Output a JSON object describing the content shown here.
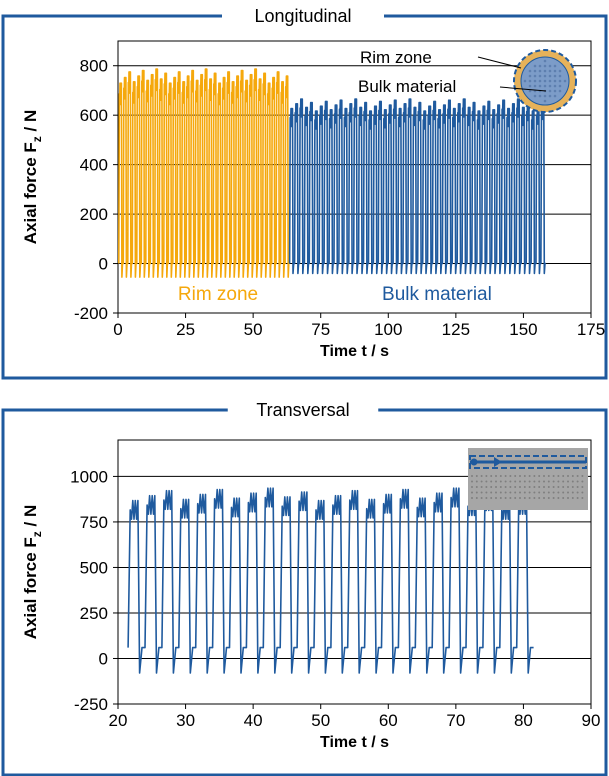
{
  "colors": {
    "frame": "#1F5A9E",
    "rim": "#F5A80C",
    "bulk": "#1F5A9E",
    "grid": "#000000",
    "inset_metal": "#A6A6A6",
    "inset_dots": "#7F7F7F",
    "inset_circle_core": "#7C9CC8",
    "inset_circle_rim": "#E6B25A"
  },
  "chart_data": [
    {
      "type": "line",
      "panel_title": "Longitudinal",
      "xlabel": "Time t / s",
      "ylabel": "Axial force F",
      "ylabel_sub": "z",
      "ylabel_unit": " / N",
      "xlim": [
        0,
        175
      ],
      "ylim": [
        -200,
        900
      ],
      "xticks": [
        "0",
        "25",
        "50",
        "75",
        "100",
        "125",
        "150",
        "175"
      ],
      "yticks": [
        "-200",
        "0",
        "200",
        "400",
        "600",
        "800"
      ],
      "grid": "horizontal",
      "series": [
        {
          "name": "Rim zone",
          "color_key": "rim",
          "t_start": 0.3,
          "t_end": 63.5,
          "cycle_count": 38,
          "baseline": 0,
          "peak": 715,
          "trough": -55
        },
        {
          "name": "Bulk material",
          "color_key": "bulk",
          "t_start": 63.5,
          "t_end": 158.3,
          "cycle_count": 52,
          "baseline": 0,
          "peak": 605,
          "trough": -40
        }
      ],
      "inset_labels": [
        "Rim zone",
        "Bulk material"
      ]
    },
    {
      "type": "line",
      "panel_title": "Transversal",
      "xlabel": "Time t / s",
      "ylabel": "Axial force F",
      "ylabel_sub": "z",
      "ylabel_unit": " / N",
      "xlim": [
        20,
        90
      ],
      "ylim": [
        -250,
        1200
      ],
      "xticks": [
        "20",
        "30",
        "40",
        "50",
        "60",
        "70",
        "80",
        "90"
      ],
      "yticks": [
        "-250",
        "0",
        "250",
        "500",
        "750",
        "1000"
      ],
      "grid": "horizontal",
      "series": [
        {
          "color_key": "bulk",
          "t_start": 21.5,
          "t_end": 81.5,
          "cycle_count": 24,
          "baseline": 60,
          "peak": 850,
          "trough": -80
        }
      ]
    }
  ]
}
